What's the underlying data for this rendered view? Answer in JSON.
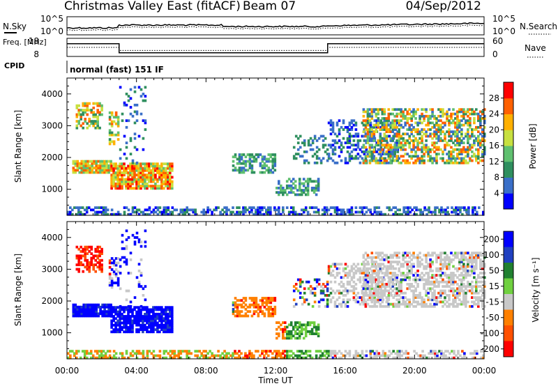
{
  "header": {
    "title": "Christmas Valley East (fitACF)",
    "beam": "Beam 07",
    "date": "04/Sep/2012"
  },
  "chart_data": [
    {
      "type": "line",
      "name_label": "N.Sky",
      "right_label": "N.Search",
      "yticks_left": [
        "10^5",
        "10^0"
      ],
      "yticks_right": [
        "10^5",
        "10^0"
      ]
    },
    {
      "type": "line",
      "name_label": "Freq. [MHz]",
      "right_label": "Nave",
      "yticks_left": [
        "18",
        "8"
      ],
      "yticks_right": [
        "60",
        "0"
      ],
      "freq_segments": [
        {
          "x0": 0,
          "x1": 3.0,
          "y": 15
        },
        {
          "x0": 3.0,
          "x1": 15.0,
          "y": 10
        },
        {
          "x0": 15.0,
          "x1": 24,
          "y": 15
        }
      ],
      "nave_segments": [
        {
          "x0": 0,
          "x1": 3.0,
          "y": 30
        },
        {
          "x0": 3.0,
          "x1": 15.0,
          "y": 20
        },
        {
          "x0": 15.0,
          "x1": 24,
          "y": 30
        }
      ],
      "ylim_left": [
        8,
        18
      ],
      "ylim_right": [
        0,
        60
      ]
    },
    {
      "type": "heatmap",
      "cpid_label": "CPID",
      "cpid_text": "normal (fast) 151 IF",
      "ylabel": "Slant Range [km]",
      "yticks": [
        1000,
        2000,
        3000,
        4000
      ],
      "ylim": [
        180,
        4500
      ],
      "xlim": [
        0,
        24
      ],
      "colorbar_label": "Power [dB]",
      "colorbar_ticks": [
        4,
        8,
        12,
        16,
        20,
        24,
        28
      ],
      "colorbar_range": [
        0,
        32
      ]
    },
    {
      "type": "heatmap",
      "ylabel": "Slant Range [km]",
      "yticks": [
        1000,
        2000,
        3000,
        4000
      ],
      "ylim": [
        180,
        4500
      ],
      "xlim": [
        0,
        24
      ],
      "xticks": [
        "00:00",
        "04:00",
        "08:00",
        "12:00",
        "16:00",
        "20:00",
        "00:00"
      ],
      "xlabel": "Time UT",
      "colorbar_label": "Velocity [m s⁻¹]",
      "colorbar_ticks": [
        "200",
        "100",
        "50",
        "15",
        "-15",
        "-50",
        "-100",
        "-200"
      ]
    }
  ],
  "colors": {
    "power": [
      "#0000ff",
      "#3a6fc8",
      "#2f8f5f",
      "#60c070",
      "#c8e040",
      "#ffb000",
      "#ff6000",
      "#ff0000"
    ],
    "velocity": [
      "#0000ff",
      "#2040c0",
      "#208030",
      "#70d040",
      "#c8c8c8",
      "#ff8000",
      "#ff5000",
      "#ff0000"
    ]
  }
}
